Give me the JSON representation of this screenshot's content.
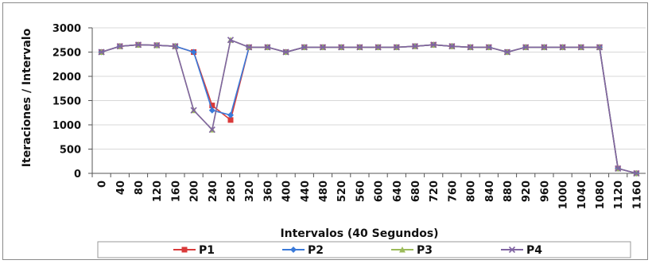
{
  "chart_data": {
    "type": "line",
    "title": "",
    "xlabel": "Intervalos (40 Segundos)",
    "ylabel": "Iteraciones / Intervalo",
    "ylim": [
      0,
      3000
    ],
    "yticks": [
      0,
      500,
      1000,
      1500,
      2000,
      2500,
      3000
    ],
    "grid": true,
    "legend": "bottom",
    "x": [
      0,
      40,
      80,
      120,
      160,
      200,
      240,
      280,
      320,
      360,
      400,
      440,
      480,
      520,
      560,
      600,
      640,
      680,
      720,
      760,
      800,
      840,
      880,
      920,
      960,
      1000,
      1040,
      1080,
      1120,
      1160
    ],
    "series": [
      {
        "name": "P1",
        "color": "#d93a3a",
        "marker": "square",
        "values": [
          2500,
          2620,
          2650,
          2640,
          2620,
          2500,
          1400,
          1100,
          2600,
          2600,
          2500,
          2600,
          2600,
          2600,
          2600,
          2600,
          2600,
          2620,
          2650,
          2620,
          2600,
          2600,
          2500,
          2600,
          2600,
          2600,
          2600,
          2600,
          100,
          0
        ]
      },
      {
        "name": "P2",
        "color": "#3a7ad9",
        "marker": "diamond",
        "values": [
          2500,
          2620,
          2650,
          2640,
          2620,
          2500,
          1300,
          1200,
          2600,
          2600,
          2500,
          2600,
          2600,
          2600,
          2600,
          2600,
          2600,
          2620,
          2650,
          2620,
          2600,
          2600,
          2500,
          2600,
          2600,
          2600,
          2600,
          2600,
          100,
          0
        ]
      },
      {
        "name": "P3",
        "color": "#9bbb59",
        "marker": "triangle",
        "values": [
          2500,
          2620,
          2650,
          2640,
          2620,
          1300,
          900,
          2750,
          2600,
          2600,
          2500,
          2600,
          2600,
          2600,
          2600,
          2600,
          2600,
          2620,
          2650,
          2620,
          2600,
          2600,
          2500,
          2600,
          2600,
          2600,
          2600,
          2600,
          100,
          0
        ]
      },
      {
        "name": "P4",
        "color": "#8064a2",
        "marker": "x",
        "values": [
          2500,
          2620,
          2650,
          2640,
          2620,
          1300,
          900,
          2750,
          2600,
          2600,
          2500,
          2600,
          2600,
          2600,
          2600,
          2600,
          2600,
          2620,
          2650,
          2620,
          2600,
          2600,
          2500,
          2600,
          2600,
          2600,
          2600,
          2600,
          100,
          0
        ]
      }
    ]
  }
}
